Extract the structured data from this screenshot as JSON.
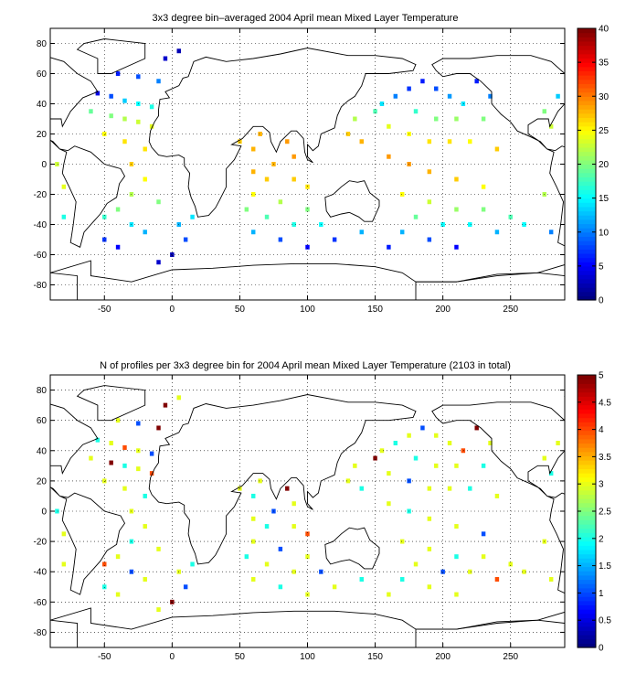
{
  "chart_data": [
    {
      "type": "heatmap",
      "title": "3x3 degree bin–averaged 2004 April mean Mixed Layer Temperature",
      "xlabel": "",
      "ylabel": "",
      "xlim": [
        -90,
        290
      ],
      "ylim": [
        -90,
        90
      ],
      "x_ticks": [
        -50,
        0,
        50,
        100,
        150,
        200,
        250
      ],
      "y_ticks": [
        80,
        60,
        40,
        20,
        0,
        -20,
        -40,
        -60,
        -80
      ],
      "grid": true,
      "colorbar": {
        "min": 0,
        "max": 40,
        "ticks": [
          40,
          35,
          30,
          25,
          20,
          15,
          10,
          5,
          0
        ],
        "colormap": "jet"
      },
      "cells": [
        {
          "lon": -40,
          "lat": 60,
          "v": 6
        },
        {
          "lon": -25,
          "lat": 58,
          "v": 8
        },
        {
          "lon": -10,
          "lat": 55,
          "v": 10
        },
        {
          "lon": -55,
          "lat": 47,
          "v": 4
        },
        {
          "lon": -45,
          "lat": 45,
          "v": 8
        },
        {
          "lon": -35,
          "lat": 42,
          "v": 13
        },
        {
          "lon": -25,
          "lat": 40,
          "v": 15
        },
        {
          "lon": -15,
          "lat": 38,
          "v": 16
        },
        {
          "lon": -60,
          "lat": 35,
          "v": 19
        },
        {
          "lon": -45,
          "lat": 32,
          "v": 20
        },
        {
          "lon": -35,
          "lat": 30,
          "v": 22
        },
        {
          "lon": -25,
          "lat": 28,
          "v": 23
        },
        {
          "lon": -15,
          "lat": 25,
          "v": 24
        },
        {
          "lon": -50,
          "lat": 20,
          "v": 25
        },
        {
          "lon": -35,
          "lat": 15,
          "v": 26
        },
        {
          "lon": -20,
          "lat": 10,
          "v": 26
        },
        {
          "lon": -30,
          "lat": 0,
          "v": 27
        },
        {
          "lon": -20,
          "lat": -10,
          "v": 25
        },
        {
          "lon": -30,
          "lat": -20,
          "v": 22
        },
        {
          "lon": -10,
          "lat": -25,
          "v": 20
        },
        {
          "lon": -40,
          "lat": -30,
          "v": 20
        },
        {
          "lon": -50,
          "lat": -35,
          "v": 17
        },
        {
          "lon": -30,
          "lat": -40,
          "v": 14
        },
        {
          "lon": -20,
          "lat": -45,
          "v": 12
        },
        {
          "lon": -50,
          "lat": -50,
          "v": 7
        },
        {
          "lon": -40,
          "lat": -55,
          "v": 5
        },
        {
          "lon": -10,
          "lat": -65,
          "v": 3
        },
        {
          "lon": 0,
          "lat": -60,
          "v": 2
        },
        {
          "lon": 10,
          "lat": -50,
          "v": 8
        },
        {
          "lon": 5,
          "lat": -40,
          "v": 12
        },
        {
          "lon": 15,
          "lat": -35,
          "v": 14
        },
        {
          "lon": -80,
          "lat": -15,
          "v": 24
        },
        {
          "lon": -85,
          "lat": 0,
          "v": 23
        },
        {
          "lon": -80,
          "lat": -35,
          "v": 16
        },
        {
          "lon": 50,
          "lat": 15,
          "v": 27
        },
        {
          "lon": 60,
          "lat": 10,
          "v": 28
        },
        {
          "lon": 65,
          "lat": 20,
          "v": 28
        },
        {
          "lon": 85,
          "lat": 15,
          "v": 29
        },
        {
          "lon": 90,
          "lat": 5,
          "v": 29
        },
        {
          "lon": 75,
          "lat": 0,
          "v": 28
        },
        {
          "lon": 60,
          "lat": -5,
          "v": 28
        },
        {
          "lon": 70,
          "lat": -10,
          "v": 27
        },
        {
          "lon": 90,
          "lat": -10,
          "v": 27
        },
        {
          "lon": 100,
          "lat": -15,
          "v": 26
        },
        {
          "lon": 60,
          "lat": -20,
          "v": 25
        },
        {
          "lon": 80,
          "lat": -25,
          "v": 22
        },
        {
          "lon": 100,
          "lat": -30,
          "v": 20
        },
        {
          "lon": 55,
          "lat": -30,
          "v": 20
        },
        {
          "lon": 70,
          "lat": -35,
          "v": 18
        },
        {
          "lon": 90,
          "lat": -40,
          "v": 16
        },
        {
          "lon": 110,
          "lat": -40,
          "v": 15
        },
        {
          "lon": 60,
          "lat": -45,
          "v": 12
        },
        {
          "lon": 80,
          "lat": -50,
          "v": 8
        },
        {
          "lon": 100,
          "lat": -55,
          "v": 5
        },
        {
          "lon": 120,
          "lat": -50,
          "v": 7
        },
        {
          "lon": 140,
          "lat": -45,
          "v": 12
        },
        {
          "lon": 150,
          "lat": 35,
          "v": 18
        },
        {
          "lon": 155,
          "lat": 40,
          "v": 14
        },
        {
          "lon": 165,
          "lat": 45,
          "v": 10
        },
        {
          "lon": 175,
          "lat": 50,
          "v": 7
        },
        {
          "lon": 185,
          "lat": 55,
          "v": 6
        },
        {
          "lon": 195,
          "lat": 50,
          "v": 8
        },
        {
          "lon": 205,
          "lat": 45,
          "v": 11
        },
        {
          "lon": 215,
          "lat": 40,
          "v": 14
        },
        {
          "lon": 225,
          "lat": 55,
          "v": 6
        },
        {
          "lon": 235,
          "lat": 45,
          "v": 10
        },
        {
          "lon": 180,
          "lat": 35,
          "v": 17
        },
        {
          "lon": 195,
          "lat": 30,
          "v": 20
        },
        {
          "lon": 210,
          "lat": 30,
          "v": 21
        },
        {
          "lon": 230,
          "lat": 30,
          "v": 20
        },
        {
          "lon": 160,
          "lat": 25,
          "v": 24
        },
        {
          "lon": 175,
          "lat": 20,
          "v": 25
        },
        {
          "lon": 190,
          "lat": 15,
          "v": 26
        },
        {
          "lon": 205,
          "lat": 15,
          "v": 26
        },
        {
          "lon": 220,
          "lat": 15,
          "v": 25
        },
        {
          "lon": 240,
          "lat": 10,
          "v": 27
        },
        {
          "lon": 160,
          "lat": 5,
          "v": 29
        },
        {
          "lon": 175,
          "lat": 0,
          "v": 29
        },
        {
          "lon": 190,
          "lat": -5,
          "v": 28
        },
        {
          "lon": 210,
          "lat": -10,
          "v": 27
        },
        {
          "lon": 230,
          "lat": -15,
          "v": 25
        },
        {
          "lon": 170,
          "lat": -20,
          "v": 25
        },
        {
          "lon": 190,
          "lat": -25,
          "v": 23
        },
        {
          "lon": 210,
          "lat": -30,
          "v": 21
        },
        {
          "lon": 230,
          "lat": -30,
          "v": 20
        },
        {
          "lon": 250,
          "lat": -35,
          "v": 18
        },
        {
          "lon": 180,
          "lat": -35,
          "v": 19
        },
        {
          "lon": 200,
          "lat": -40,
          "v": 15
        },
        {
          "lon": 220,
          "lat": -40,
          "v": 15
        },
        {
          "lon": 240,
          "lat": -45,
          "v": 12
        },
        {
          "lon": 260,
          "lat": -40,
          "v": 15
        },
        {
          "lon": 170,
          "lat": -45,
          "v": 12
        },
        {
          "lon": 190,
          "lat": -50,
          "v": 8
        },
        {
          "lon": 210,
          "lat": -55,
          "v": 5
        },
        {
          "lon": 160,
          "lat": -55,
          "v": 6
        },
        {
          "lon": 275,
          "lat": 35,
          "v": 20
        },
        {
          "lon": 280,
          "lat": 25,
          "v": 23
        },
        {
          "lon": 285,
          "lat": 45,
          "v": 13
        },
        {
          "lon": 275,
          "lat": -20,
          "v": 22
        },
        {
          "lon": 280,
          "lat": -45,
          "v": 10
        },
        {
          "lon": -5,
          "lat": 70,
          "v": 3
        },
        {
          "lon": 5,
          "lat": 75,
          "v": 2
        },
        {
          "lon": 130,
          "lat": 20,
          "v": 27
        },
        {
          "lon": 140,
          "lat": 15,
          "v": 28
        },
        {
          "lon": 135,
          "lat": 30,
          "v": 22
        }
      ]
    },
    {
      "type": "heatmap",
      "title": "N of profiles per 3x3 degree bin for 2004 April mean Mixed Layer Temperature  (2103 in total)",
      "xlabel": "",
      "ylabel": "",
      "xlim": [
        -90,
        290
      ],
      "ylim": [
        -90,
        90
      ],
      "x_ticks": [
        -50,
        0,
        50,
        100,
        150,
        200,
        250
      ],
      "y_ticks": [
        80,
        60,
        40,
        20,
        0,
        -20,
        -40,
        -60,
        -80
      ],
      "grid": true,
      "colorbar": {
        "min": 0,
        "max": 5,
        "ticks": [
          5,
          4.5,
          4,
          3.5,
          3,
          2.5,
          2,
          1.5,
          1,
          0.5,
          0
        ],
        "colormap": "jet"
      },
      "cells": [
        {
          "lon": -40,
          "lat": 60,
          "v": 3
        },
        {
          "lon": -25,
          "lat": 58,
          "v": 1
        },
        {
          "lon": -10,
          "lat": 55,
          "v": 5
        },
        {
          "lon": -55,
          "lat": 47,
          "v": 2
        },
        {
          "lon": -45,
          "lat": 45,
          "v": 3
        },
        {
          "lon": -35,
          "lat": 42,
          "v": 4
        },
        {
          "lon": -25,
          "lat": 40,
          "v": 3
        },
        {
          "lon": -15,
          "lat": 38,
          "v": 1
        },
        {
          "lon": -60,
          "lat": 35,
          "v": 3
        },
        {
          "lon": -45,
          "lat": 32,
          "v": 5
        },
        {
          "lon": -35,
          "lat": 30,
          "v": 2
        },
        {
          "lon": -25,
          "lat": 28,
          "v": 3
        },
        {
          "lon": -15,
          "lat": 25,
          "v": 4
        },
        {
          "lon": -50,
          "lat": 20,
          "v": 3
        },
        {
          "lon": -35,
          "lat": 15,
          "v": 3
        },
        {
          "lon": -20,
          "lat": 10,
          "v": 2
        },
        {
          "lon": -30,
          "lat": 0,
          "v": 3
        },
        {
          "lon": -20,
          "lat": -10,
          "v": 3
        },
        {
          "lon": -30,
          "lat": -20,
          "v": 2
        },
        {
          "lon": -10,
          "lat": -25,
          "v": 3
        },
        {
          "lon": -40,
          "lat": -30,
          "v": 3
        },
        {
          "lon": -50,
          "lat": -35,
          "v": 4
        },
        {
          "lon": -30,
          "lat": -40,
          "v": 1
        },
        {
          "lon": -20,
          "lat": -45,
          "v": 3
        },
        {
          "lon": -50,
          "lat": -50,
          "v": 2
        },
        {
          "lon": -40,
          "lat": -55,
          "v": 3
        },
        {
          "lon": -10,
          "lat": -65,
          "v": 3
        },
        {
          "lon": 0,
          "lat": -60,
          "v": 5
        },
        {
          "lon": 10,
          "lat": -50,
          "v": 1
        },
        {
          "lon": 5,
          "lat": -40,
          "v": 3
        },
        {
          "lon": 15,
          "lat": -35,
          "v": 2
        },
        {
          "lon": -80,
          "lat": -15,
          "v": 3
        },
        {
          "lon": -85,
          "lat": 0,
          "v": 2
        },
        {
          "lon": -80,
          "lat": -35,
          "v": 3
        },
        {
          "lon": 50,
          "lat": 15,
          "v": 3
        },
        {
          "lon": 60,
          "lat": 10,
          "v": 2
        },
        {
          "lon": 65,
          "lat": 20,
          "v": 3
        },
        {
          "lon": 85,
          "lat": 15,
          "v": 5
        },
        {
          "lon": 90,
          "lat": 5,
          "v": 3
        },
        {
          "lon": 75,
          "lat": 0,
          "v": 1
        },
        {
          "lon": 60,
          "lat": -5,
          "v": 3
        },
        {
          "lon": 70,
          "lat": -10,
          "v": 2
        },
        {
          "lon": 90,
          "lat": -10,
          "v": 3
        },
        {
          "lon": 100,
          "lat": -15,
          "v": 4
        },
        {
          "lon": 60,
          "lat": -20,
          "v": 3
        },
        {
          "lon": 80,
          "lat": -25,
          "v": 1
        },
        {
          "lon": 100,
          "lat": -30,
          "v": 3
        },
        {
          "lon": 55,
          "lat": -30,
          "v": 2
        },
        {
          "lon": 70,
          "lat": -35,
          "v": 3
        },
        {
          "lon": 90,
          "lat": -40,
          "v": 3
        },
        {
          "lon": 110,
          "lat": -40,
          "v": 1
        },
        {
          "lon": 60,
          "lat": -45,
          "v": 3
        },
        {
          "lon": 80,
          "lat": -50,
          "v": 2
        },
        {
          "lon": 100,
          "lat": -55,
          "v": 3
        },
        {
          "lon": 120,
          "lat": -50,
          "v": 3
        },
        {
          "lon": 140,
          "lat": -45,
          "v": 2
        },
        {
          "lon": 150,
          "lat": 35,
          "v": 5
        },
        {
          "lon": 155,
          "lat": 40,
          "v": 3
        },
        {
          "lon": 165,
          "lat": 45,
          "v": 2
        },
        {
          "lon": 175,
          "lat": 50,
          "v": 3
        },
        {
          "lon": 185,
          "lat": 55,
          "v": 1
        },
        {
          "lon": 195,
          "lat": 50,
          "v": 3
        },
        {
          "lon": 205,
          "lat": 45,
          "v": 3
        },
        {
          "lon": 215,
          "lat": 40,
          "v": 4
        },
        {
          "lon": 225,
          "lat": 55,
          "v": 5
        },
        {
          "lon": 235,
          "lat": 45,
          "v": 3
        },
        {
          "lon": 180,
          "lat": 35,
          "v": 2
        },
        {
          "lon": 195,
          "lat": 30,
          "v": 3
        },
        {
          "lon": 210,
          "lat": 30,
          "v": 3
        },
        {
          "lon": 230,
          "lat": 30,
          "v": 2
        },
        {
          "lon": 160,
          "lat": 25,
          "v": 3
        },
        {
          "lon": 175,
          "lat": 20,
          "v": 1
        },
        {
          "lon": 190,
          "lat": 15,
          "v": 3
        },
        {
          "lon": 205,
          "lat": 15,
          "v": 3
        },
        {
          "lon": 220,
          "lat": 15,
          "v": 2
        },
        {
          "lon": 240,
          "lat": 10,
          "v": 3
        },
        {
          "lon": 160,
          "lat": 5,
          "v": 3
        },
        {
          "lon": 175,
          "lat": 0,
          "v": 2
        },
        {
          "lon": 190,
          "lat": -5,
          "v": 3
        },
        {
          "lon": 210,
          "lat": -10,
          "v": 3
        },
        {
          "lon": 230,
          "lat": -15,
          "v": 1
        },
        {
          "lon": 170,
          "lat": -20,
          "v": 3
        },
        {
          "lon": 190,
          "lat": -25,
          "v": 3
        },
        {
          "lon": 210,
          "lat": -30,
          "v": 2
        },
        {
          "lon": 230,
          "lat": -30,
          "v": 3
        },
        {
          "lon": 250,
          "lat": -35,
          "v": 3
        },
        {
          "lon": 180,
          "lat": -35,
          "v": 3
        },
        {
          "lon": 200,
          "lat": -40,
          "v": 1
        },
        {
          "lon": 220,
          "lat": -40,
          "v": 3
        },
        {
          "lon": 240,
          "lat": -45,
          "v": 4
        },
        {
          "lon": 260,
          "lat": -40,
          "v": 3
        },
        {
          "lon": 170,
          "lat": -45,
          "v": 2
        },
        {
          "lon": 190,
          "lat": -50,
          "v": 3
        },
        {
          "lon": 210,
          "lat": -55,
          "v": 3
        },
        {
          "lon": 160,
          "lat": -55,
          "v": 3
        },
        {
          "lon": 275,
          "lat": 35,
          "v": 3
        },
        {
          "lon": 280,
          "lat": 25,
          "v": 2
        },
        {
          "lon": 285,
          "lat": 45,
          "v": 3
        },
        {
          "lon": 275,
          "lat": -20,
          "v": 3
        },
        {
          "lon": 280,
          "lat": -45,
          "v": 3
        },
        {
          "lon": -5,
          "lat": 70,
          "v": 5
        },
        {
          "lon": 5,
          "lat": 75,
          "v": 3
        },
        {
          "lon": 130,
          "lat": 20,
          "v": 3
        },
        {
          "lon": 140,
          "lat": 15,
          "v": 2
        },
        {
          "lon": 135,
          "lat": 30,
          "v": 3
        }
      ]
    }
  ]
}
